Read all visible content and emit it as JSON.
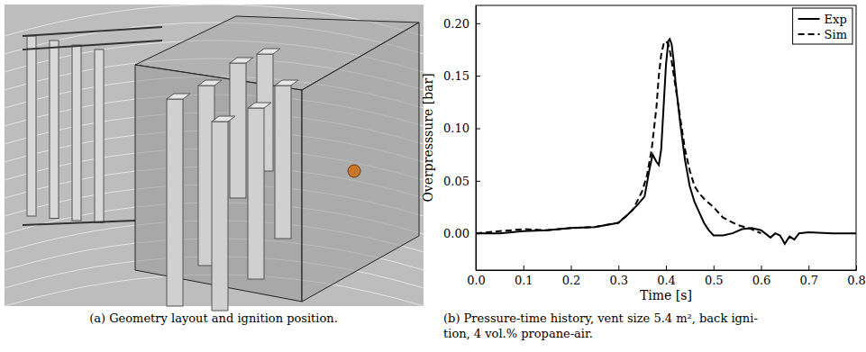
{
  "chart_data": {
    "type": "line",
    "x_label": "Time [s]",
    "y_label": "Overpresssure [bar]",
    "caption": [
      "(b) Pressure-time history, vent size 5.4 m², back igni-",
      "tion, 4 vol.% propane-air."
    ],
    "xlim": [
      0,
      0.8
    ],
    "xticks": [
      {
        "value": 0,
        "label": "0.0"
      },
      0.1,
      0.2,
      0.3,
      0.4,
      0.5,
      0.6,
      0.7,
      0.8
    ],
    "ylim": [
      -0.035,
      0.217
    ],
    "yticks": [
      {
        "value": 0,
        "label": "0.00"
      },
      0.05,
      {
        "value": 0.1,
        "label": "0.10"
      },
      0.15,
      {
        "value": 0.2,
        "label": "0.20"
      }
    ],
    "legend": "upper right",
    "grid": false,
    "series": [
      {
        "name": "Exp",
        "color": "#000000",
        "line_style": "solid",
        "x": [
          0,
          0.05,
          0.1,
          0.15,
          0.2,
          0.25,
          0.3,
          0.32,
          0.34,
          0.355,
          0.365,
          0.372,
          0.38,
          0.385,
          0.39,
          0.395,
          0.4,
          0.405,
          0.408,
          0.412,
          0.416,
          0.42,
          0.43,
          0.44,
          0.45,
          0.46,
          0.47,
          0.48,
          0.49,
          0.5,
          0.52,
          0.54,
          0.56,
          0.58,
          0.6,
          0.62,
          0.63,
          0.64,
          0.65,
          0.66,
          0.67,
          0.68,
          0.7,
          0.75,
          0.8
        ],
        "values": [
          0,
          0,
          0.002,
          0.003,
          0.005,
          0.006,
          0.01,
          0.018,
          0.027,
          0.035,
          0.06,
          0.075,
          0.068,
          0.065,
          0.08,
          0.12,
          0.16,
          0.183,
          0.185,
          0.18,
          0.165,
          0.145,
          0.105,
          0.07,
          0.045,
          0.03,
          0.02,
          0.01,
          0.003,
          -0.002,
          -0.002,
          0.0,
          0.004,
          0.005,
          0.003,
          -0.004,
          0.0,
          -0.002,
          -0.01,
          -0.003,
          -0.006,
          0.0,
          0.001,
          0.0,
          0.0
        ]
      },
      {
        "name": "Sim",
        "color": "#000000",
        "line_style": "dashed",
        "x": [
          0,
          0.05,
          0.1,
          0.15,
          0.2,
          0.25,
          0.3,
          0.33,
          0.35,
          0.36,
          0.37,
          0.38,
          0.385,
          0.39,
          0.395,
          0.4,
          0.405,
          0.41,
          0.42,
          0.43,
          0.44,
          0.45,
          0.46,
          0.47,
          0.48,
          0.5,
          0.52,
          0.55,
          0.58,
          0.6
        ],
        "values": [
          0,
          0.002,
          0.004,
          0.003,
          0.005,
          0.006,
          0.01,
          0.022,
          0.04,
          0.055,
          0.08,
          0.12,
          0.15,
          0.17,
          0.18,
          0.183,
          0.18,
          0.17,
          0.14,
          0.11,
          0.08,
          0.06,
          0.045,
          0.038,
          0.033,
          0.025,
          0.015,
          0.008,
          0.004,
          0.0
        ]
      }
    ]
  },
  "geometry_panel": {
    "caption": "(a) Geometry layout and ignition position."
  }
}
